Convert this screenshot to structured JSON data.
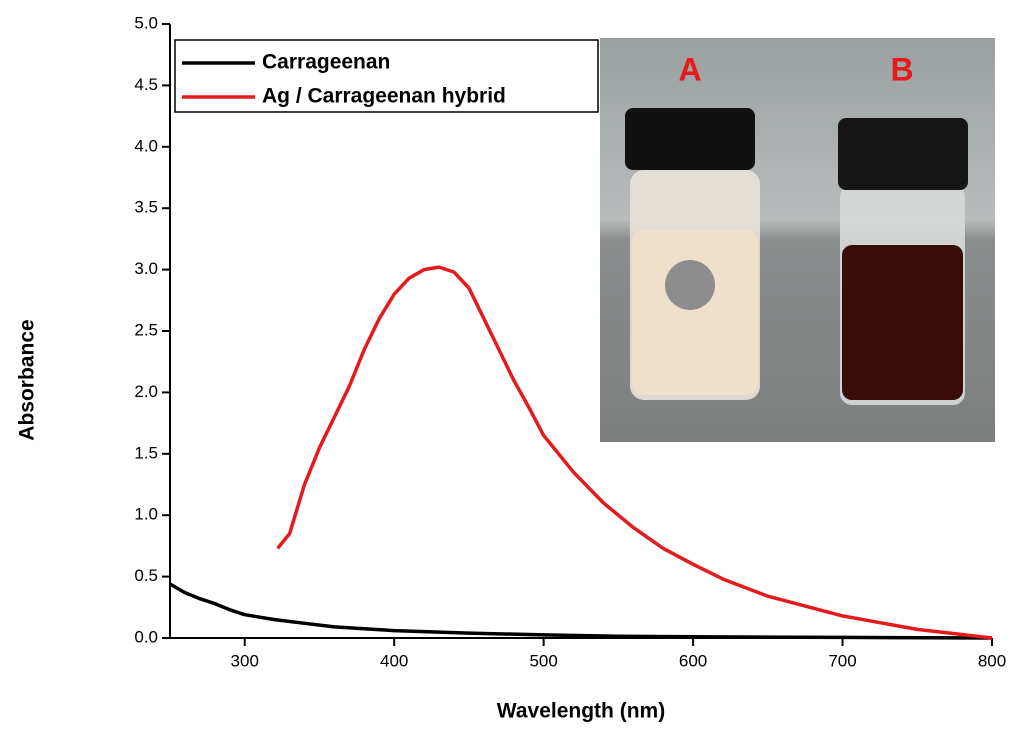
{
  "chart_data": {
    "type": "line",
    "xlabel": "Wavelength (nm)",
    "ylabel": "Absorbance",
    "xlim": [
      250,
      800
    ],
    "ylim": [
      0,
      5
    ],
    "xticks": [
      300,
      400,
      500,
      600,
      700,
      800
    ],
    "yticks": [
      {
        "value": 0,
        "label": "0.0"
      },
      0.5,
      {
        "value": 1,
        "label": "1.0"
      },
      1.5,
      {
        "value": 2,
        "label": "2.0"
      },
      2.5,
      {
        "value": 3,
        "label": "3.0"
      },
      3.5,
      {
        "value": 4,
        "label": "4.0"
      },
      4.5,
      {
        "value": 5,
        "label": "5.0"
      }
    ],
    "legend": "upper left",
    "series": [
      {
        "name": "Carrageenan",
        "color": "#000000",
        "x": [
          250,
          260,
          270,
          280,
          290,
          300,
          320,
          340,
          360,
          380,
          400,
          450,
          500,
          550,
          600,
          700,
          800
        ],
        "values": [
          0.44,
          0.37,
          0.32,
          0.28,
          0.23,
          0.19,
          0.15,
          0.12,
          0.09,
          0.075,
          0.06,
          0.04,
          0.025,
          0.015,
          0.01,
          0.005,
          0.0
        ]
      },
      {
        "name": "Ag / Carrageenan hybrid",
        "color": "#e41a1c",
        "x": [
          322,
          330,
          340,
          350,
          360,
          370,
          380,
          390,
          400,
          410,
          420,
          430,
          440,
          450,
          460,
          470,
          480,
          490,
          500,
          520,
          540,
          560,
          580,
          600,
          620,
          650,
          700,
          750,
          800
        ],
        "values": [
          0.73,
          0.85,
          1.25,
          1.55,
          1.8,
          2.05,
          2.35,
          2.6,
          2.8,
          2.93,
          3.0,
          3.02,
          2.98,
          2.85,
          2.6,
          2.35,
          2.1,
          1.88,
          1.65,
          1.35,
          1.1,
          0.9,
          0.73,
          0.6,
          0.48,
          0.34,
          0.18,
          0.07,
          0.0
        ]
      }
    ],
    "inset_labels": [
      "A",
      "B"
    ]
  }
}
